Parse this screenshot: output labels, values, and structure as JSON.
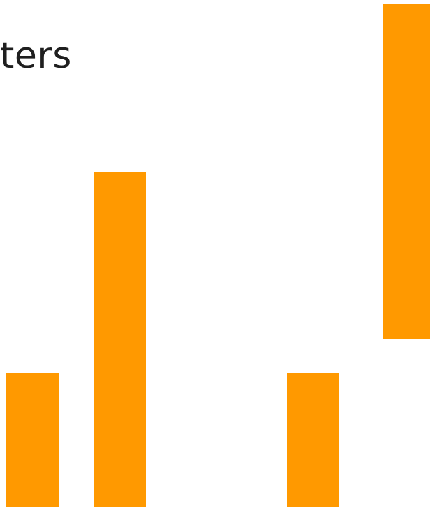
{
  "title_fragment": "ters",
  "colors": {
    "bar": "#FF9900",
    "background": "#FFFFFF",
    "text": "#1F1F1F"
  }
}
